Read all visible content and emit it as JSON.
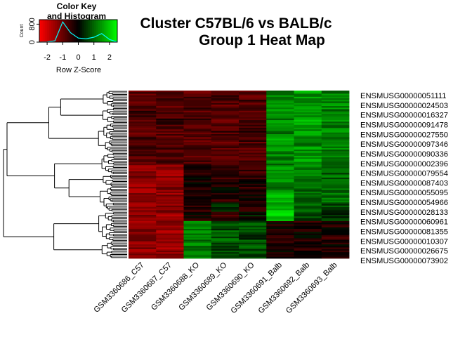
{
  "title": {
    "line1": "Cluster C57BL/6 vs BALB/c",
    "line2": "Group 1 Heat Map"
  },
  "color_key": {
    "title_line1": "Color Key",
    "title_line2": "and Histogram",
    "y_axis_label": "Count",
    "y_ticks": [
      "0",
      "800"
    ],
    "x_ticks": [
      "-2",
      "-1",
      "0",
      "1",
      "2"
    ],
    "x_label": "Row Z-Score",
    "low_color": "#ff0000",
    "mid_color": "#000000",
    "high_color": "#00ff00",
    "histogram_color": "#00ffff"
  },
  "chart_data": {
    "type": "heatmap",
    "title": "Cluster C57BL/6 vs BALB/c Group 1 Heat Map",
    "columns": [
      "GSM3360686_C57",
      "GSM3360687_C57",
      "GSM3360688_KO",
      "GSM3360689_KO",
      "GSM3360690_KO",
      "GSM3360691_Balb",
      "GSM3360692_Balb",
      "GSM3360693_Balb"
    ],
    "row_labels": [
      "ENSMUSG00000051111",
      "ENSMUSG00000024503",
      "ENSMUSG00000016327",
      "ENSMUSG00000091478",
      "ENSMUSG00000027550",
      "ENSMUSG00000097346",
      "ENSMUSG00000090336",
      "ENSMUSG00000002396",
      "ENSMUSG00000079554",
      "ENSMUSG00000087403",
      "ENSMUSG00000055095",
      "ENSMUSG00000054966",
      "ENSMUSG00000028133",
      "ENSMUSG00000060961",
      "ENSMUSG00000081355",
      "ENSMUSG00000010307",
      "ENSMUSG00000026675",
      "ENSMUSG00000073902"
    ],
    "z_scores": [
      [
        -0.8,
        -0.7,
        -0.8,
        -0.7,
        -0.8,
        1.3,
        1.5,
        1.2
      ],
      [
        -0.9,
        -0.8,
        -0.7,
        -0.8,
        -0.7,
        1.2,
        1.4,
        1.3
      ],
      [
        -0.7,
        -0.8,
        -0.9,
        -0.6,
        -0.7,
        1.4,
        1.3,
        1.1
      ],
      [
        -0.9,
        -0.6,
        -0.7,
        -0.8,
        -0.8,
        1.3,
        1.6,
        1.2
      ],
      [
        -0.8,
        -0.9,
        -0.8,
        -0.7,
        -0.6,
        1.1,
        1.5,
        1.4
      ],
      [
        -0.7,
        -0.7,
        -0.8,
        -0.9,
        -0.7,
        1.5,
        1.2,
        1.3
      ],
      [
        -0.8,
        -0.8,
        -0.7,
        -0.8,
        -0.9,
        1.3,
        1.4,
        1.2
      ],
      [
        -0.9,
        -0.7,
        -0.8,
        -0.7,
        -0.8,
        1.2,
        1.5,
        1.3
      ],
      [
        -1.3,
        -1.6,
        -0.3,
        -0.4,
        -0.5,
        1.4,
        1.2,
        0.9
      ],
      [
        -1.2,
        -1.5,
        -0.2,
        -0.5,
        -0.3,
        1.5,
        1.1,
        1.0
      ],
      [
        -1.4,
        -1.3,
        -0.4,
        -0.2,
        -0.4,
        1.3,
        1.0,
        1.1
      ],
      [
        -1.1,
        -1.4,
        -0.3,
        -0.4,
        -0.2,
        1.6,
        0.9,
        1.0
      ],
      [
        -1.3,
        -1.2,
        -0.5,
        0.3,
        -0.4,
        1.8,
        0.9,
        0.7
      ],
      [
        -1.2,
        -1.5,
        -0.2,
        -0.5,
        0.2,
        1.9,
        0.8,
        0.6
      ],
      [
        -1.4,
        -1.3,
        1.1,
        0.7,
        0.8,
        -0.2,
        -0.4,
        -0.3
      ],
      [
        -1.2,
        -1.6,
        1.3,
        0.9,
        0.6,
        -0.3,
        -0.2,
        -0.4
      ],
      [
        -1.3,
        -1.5,
        1.2,
        0.8,
        0.9,
        -0.4,
        -0.3,
        -0.2
      ],
      [
        -1.4,
        -1.4,
        1.0,
        0.6,
        0.7,
        -0.2,
        -0.3,
        -0.3
      ]
    ],
    "color_scale": {
      "min": -2.5,
      "max": 2.5,
      "low": "#ff0000",
      "mid": "#000000",
      "high": "#00ff00"
    },
    "key_histogram": {
      "x": [
        -2.5,
        -2.0,
        -1.5,
        -1.0,
        -0.5,
        0.0,
        0.5,
        1.0,
        1.5,
        2.0,
        2.5
      ],
      "counts": [
        0,
        10,
        60,
        900,
        420,
        180,
        150,
        220,
        380,
        120,
        0
      ]
    }
  }
}
